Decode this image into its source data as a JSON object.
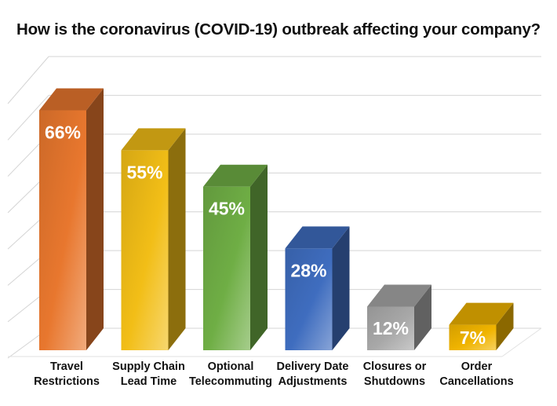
{
  "chart_data": {
    "type": "bar",
    "title": "How is the coronavirus (COVID-19) outbreak affecting your company?",
    "xlabel": "",
    "ylabel": "",
    "ylim": [
      0,
      70
    ],
    "grid": true,
    "legend": "none",
    "three_d": true,
    "categories": [
      [
        "Travel",
        "Restrictions"
      ],
      [
        "Supply Chain",
        "Lead Time"
      ],
      [
        "Optional",
        "Telecommuting"
      ],
      [
        "Delivery Date",
        "Adjustments"
      ],
      [
        "Closures or",
        "Shutdowns"
      ],
      [
        "Order",
        "Cancellations"
      ]
    ],
    "values": [
      66,
      55,
      45,
      28,
      12,
      7
    ],
    "data_labels": [
      "66%",
      "55%",
      "45%",
      "28%",
      "12%",
      "7%"
    ],
    "colors": [
      "#E8772E",
      "#F2BE17",
      "#6FAE45",
      "#3F6DBF",
      "#A8A8A8",
      "#F0B400"
    ]
  }
}
